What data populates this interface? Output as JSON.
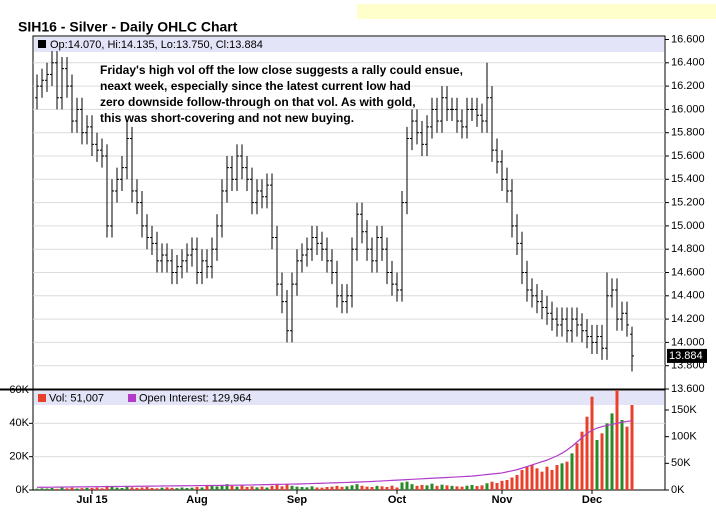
{
  "chart_data": [
    {
      "type": "ohlc",
      "title": "SIH16 - Silver - Daily OHLC Chart",
      "legend_text": "Op:14.070, Hi:14.135, Lo:13.750, Cl:13.884",
      "legend_color": "#000000",
      "annotation": [
        "Friday's high vol off the low close suggests a rally could ensue,",
        "neaxt week, especially since the latest current low had",
        "zero downside follow-through on that vol.  As with gold,",
        "this was short-covering and not new buying."
      ],
      "last_value_label": "13.884",
      "color": "#000000",
      "grid": true,
      "ylim": [
        13.6,
        16.63
      ],
      "yticks": [
        {
          "value": 13.6,
          "label": "13.600"
        },
        {
          "value": 13.8,
          "label": "13.800"
        },
        {
          "value": 14.0,
          "label": "14.000"
        },
        {
          "value": 14.2,
          "label": "14.200"
        },
        {
          "value": 14.4,
          "label": "14.400"
        },
        {
          "value": 14.6,
          "label": "14.600"
        },
        {
          "value": 14.8,
          "label": "14.800"
        },
        {
          "value": 15.0,
          "label": "15.000"
        },
        {
          "value": 15.2,
          "label": "15.200"
        },
        {
          "value": 15.4,
          "label": "15.400"
        },
        {
          "value": 15.6,
          "label": "15.600"
        },
        {
          "value": 15.8,
          "label": "15.800"
        },
        {
          "value": 16.0,
          "label": "16.000"
        },
        {
          "value": 16.2,
          "label": "16.200"
        },
        {
          "value": 16.4,
          "label": "16.400"
        },
        {
          "value": 16.6,
          "label": "16.600"
        }
      ],
      "open": [
        16.1,
        16.2,
        16.25,
        16.3,
        16.4,
        16.1,
        16.35,
        16.2,
        15.9,
        16.0,
        15.8,
        15.85,
        15.7,
        15.65,
        15.6,
        15.0,
        15.3,
        15.4,
        15.5,
        15.75,
        15.3,
        15.2,
        15.0,
        14.9,
        14.85,
        14.7,
        14.75,
        14.7,
        14.6,
        14.65,
        14.7,
        14.75,
        14.8,
        14.6,
        14.7,
        14.65,
        14.8,
        15.0,
        15.3,
        15.5,
        15.4,
        15.6,
        15.5,
        15.4,
        15.2,
        15.3,
        15.25,
        15.35,
        14.9,
        14.5,
        14.35,
        14.1,
        14.5,
        14.7,
        14.75,
        14.8,
        14.9,
        14.85,
        14.8,
        14.7,
        14.6,
        14.4,
        14.35,
        14.4,
        14.8,
        15.1,
        14.95,
        14.8,
        14.7,
        14.9,
        14.8,
        14.6,
        14.5,
        14.45,
        15.2,
        15.75,
        15.9,
        15.8,
        15.7,
        15.85,
        16.0,
        15.9,
        16.1,
        16.0,
        16.0,
        15.9,
        15.85,
        16.0,
        16.0,
        15.95,
        15.9,
        16.1,
        15.65,
        15.55,
        15.4,
        15.3,
        15.0,
        14.85,
        14.6,
        14.45,
        14.4,
        14.35,
        14.3,
        14.25,
        14.2,
        14.15,
        14.2,
        14.1,
        14.2,
        14.15,
        14.1,
        14.05,
        14.0,
        14.05,
        13.95,
        14.4,
        14.45,
        14.2,
        14.25,
        14.07
      ],
      "high": [
        16.3,
        16.35,
        16.4,
        16.5,
        16.5,
        16.45,
        16.45,
        16.3,
        16.1,
        16.1,
        15.95,
        15.95,
        15.8,
        15.75,
        15.7,
        15.4,
        15.5,
        15.6,
        15.9,
        15.85,
        15.4,
        15.3,
        15.1,
        15.0,
        14.95,
        14.85,
        14.85,
        14.8,
        14.75,
        14.8,
        14.85,
        14.9,
        14.9,
        14.8,
        14.8,
        14.9,
        15.1,
        15.4,
        15.6,
        15.6,
        15.7,
        15.7,
        15.6,
        15.5,
        15.4,
        15.4,
        15.45,
        15.45,
        15.0,
        14.6,
        14.45,
        14.6,
        14.8,
        14.85,
        14.9,
        15.0,
        15.0,
        14.95,
        14.9,
        14.8,
        14.7,
        14.5,
        14.5,
        14.9,
        15.2,
        15.2,
        15.05,
        14.9,
        15.0,
        15.0,
        14.9,
        14.7,
        14.6,
        15.3,
        15.85,
        16.0,
        16.0,
        15.9,
        15.95,
        16.1,
        16.1,
        16.2,
        16.2,
        16.1,
        16.1,
        16.0,
        16.1,
        16.1,
        16.1,
        16.05,
        16.4,
        16.2,
        15.75,
        15.65,
        15.5,
        15.4,
        15.1,
        14.95,
        14.7,
        14.55,
        14.5,
        14.45,
        14.4,
        14.35,
        14.3,
        14.3,
        14.3,
        14.3,
        14.3,
        14.25,
        14.2,
        14.15,
        14.15,
        14.15,
        14.6,
        14.55,
        14.55,
        14.35,
        14.35,
        14.135
      ],
      "low": [
        16.0,
        16.1,
        16.15,
        16.2,
        16.0,
        16.0,
        16.1,
        15.8,
        15.8,
        15.7,
        15.7,
        15.6,
        15.55,
        15.5,
        14.9,
        14.9,
        15.2,
        15.3,
        15.4,
        15.2,
        15.1,
        14.9,
        14.8,
        14.75,
        14.6,
        14.6,
        14.6,
        14.5,
        14.5,
        14.55,
        14.6,
        14.65,
        14.5,
        14.5,
        14.55,
        14.55,
        14.7,
        14.9,
        15.2,
        15.3,
        15.3,
        15.4,
        15.3,
        15.1,
        15.1,
        15.15,
        15.15,
        14.8,
        14.4,
        14.25,
        14.0,
        14.0,
        14.4,
        14.6,
        14.65,
        14.7,
        14.75,
        14.7,
        14.6,
        14.5,
        14.3,
        14.25,
        14.25,
        14.3,
        14.7,
        14.85,
        14.7,
        14.6,
        14.6,
        14.7,
        14.5,
        14.4,
        14.35,
        14.35,
        15.1,
        15.65,
        15.7,
        15.6,
        15.6,
        15.75,
        15.8,
        15.8,
        15.9,
        15.9,
        15.8,
        15.75,
        15.75,
        15.9,
        15.85,
        15.8,
        15.8,
        15.55,
        15.45,
        15.3,
        15.2,
        14.9,
        14.75,
        14.5,
        14.35,
        14.3,
        14.25,
        14.2,
        14.15,
        14.1,
        14.05,
        14.05,
        14.0,
        14.0,
        14.05,
        14.0,
        13.95,
        13.9,
        13.9,
        13.85,
        13.85,
        14.3,
        14.1,
        14.1,
        14.05,
        13.75
      ],
      "close": [
        16.2,
        16.25,
        16.3,
        16.4,
        16.1,
        16.35,
        16.2,
        15.9,
        16.0,
        15.8,
        15.85,
        15.7,
        15.65,
        15.6,
        15.0,
        15.3,
        15.4,
        15.5,
        15.75,
        15.3,
        15.2,
        15.0,
        14.9,
        14.85,
        14.7,
        14.75,
        14.7,
        14.6,
        14.65,
        14.7,
        14.75,
        14.8,
        14.6,
        14.7,
        14.65,
        14.8,
        15.0,
        15.3,
        15.5,
        15.4,
        15.6,
        15.5,
        15.4,
        15.2,
        15.3,
        15.25,
        15.35,
        14.9,
        14.5,
        14.35,
        14.1,
        14.5,
        14.7,
        14.75,
        14.8,
        14.9,
        14.85,
        14.8,
        14.7,
        14.6,
        14.4,
        14.35,
        14.4,
        14.8,
        15.1,
        14.95,
        14.8,
        14.7,
        14.9,
        14.8,
        14.6,
        14.5,
        14.45,
        15.2,
        15.75,
        15.9,
        15.8,
        15.7,
        15.85,
        16.0,
        15.9,
        16.1,
        16.0,
        16.0,
        15.9,
        15.85,
        16.0,
        16.0,
        15.95,
        15.9,
        16.1,
        15.65,
        15.55,
        15.4,
        15.3,
        15.0,
        14.85,
        14.6,
        14.45,
        14.4,
        14.35,
        14.3,
        14.25,
        14.2,
        14.15,
        14.2,
        14.1,
        14.2,
        14.15,
        14.1,
        14.05,
        14.0,
        14.05,
        13.95,
        14.4,
        14.45,
        14.2,
        14.25,
        14.15,
        13.884
      ]
    },
    {
      "type": "bar",
      "grid": true,
      "up_color": "#2a8a2a",
      "categories": [
        null,
        null,
        null,
        null,
        null,
        null,
        null,
        null,
        null,
        null,
        null,
        "Jul 15",
        null,
        null,
        null,
        null,
        null,
        null,
        null,
        null,
        null,
        null,
        null,
        null,
        null,
        null,
        null,
        null,
        null,
        null,
        null,
        null,
        "Aug",
        null,
        null,
        null,
        null,
        null,
        null,
        null,
        null,
        null,
        null,
        null,
        null,
        null,
        null,
        null,
        null,
        null,
        null,
        null,
        "Sep",
        null,
        null,
        null,
        null,
        null,
        null,
        null,
        null,
        null,
        null,
        null,
        null,
        null,
        null,
        null,
        null,
        null,
        null,
        null,
        "Oct",
        null,
        null,
        null,
        null,
        null,
        null,
        null,
        null,
        null,
        null,
        null,
        null,
        null,
        null,
        null,
        null,
        null,
        null,
        null,
        null,
        "Nov",
        null,
        null,
        null,
        null,
        null,
        null,
        null,
        null,
        null,
        null,
        null,
        null,
        null,
        null,
        null,
        null,
        null,
        "Dec",
        null,
        null,
        null,
        null,
        null,
        null,
        null,
        null
      ],
      "ylim": [
        0,
        60000
      ],
      "yticks": [
        {
          "value": 0,
          "label": "0K"
        },
        {
          "value": 20000,
          "label": "20K"
        },
        {
          "value": 40000,
          "label": "40K"
        },
        {
          "value": 60000,
          "label": "60K"
        }
      ],
      "y2lim": [
        0,
        187500
      ],
      "y2ticks": [
        {
          "value": 0,
          "label": "0K"
        },
        {
          "value": 50000,
          "label": "50K"
        },
        {
          "value": 100000,
          "label": "100K"
        },
        {
          "value": 150000,
          "label": "150K"
        }
      ],
      "series": [
        {
          "name": "Vol: 51,007",
          "color": "#e8402a",
          "values": [
            800,
            1000,
            900,
            1200,
            700,
            1500,
            1000,
            1400,
            900,
            1100,
            1300,
            1200,
            1500,
            1000,
            2500,
            1800,
            1400,
            1200,
            2000,
            1600,
            1300,
            1500,
            1800,
            1200,
            1000,
            1400,
            1600,
            1300,
            1100,
            1500,
            1200,
            1400,
            1800,
            1500,
            2500,
            3000,
            2200,
            2800,
            3500,
            2400,
            2000,
            2600,
            1800,
            2200,
            1600,
            2000,
            1500,
            2500,
            3000,
            2200,
            3500,
            2500,
            2000,
            1800,
            1600,
            2200,
            1500,
            1400,
            1800,
            2000,
            2500,
            1900,
            2200,
            2800,
            3500,
            2500,
            2000,
            1800,
            2500,
            2200,
            1800,
            2600,
            1500,
            4500,
            5000,
            3500,
            2500,
            3000,
            2800,
            3800,
            2500,
            3200,
            2800,
            2500,
            2200,
            2000,
            2600,
            3000,
            2400,
            2800,
            4000,
            5000,
            4200,
            5500,
            6000,
            7500,
            9000,
            12000,
            14000,
            15000,
            13000,
            11000,
            14000,
            12000,
            15000,
            16000,
            17000,
            22000,
            28000,
            35000,
            44000,
            56000,
            30000,
            34000,
            40000,
            46000,
            60000,
            42000,
            38000,
            51007
          ]
        },
        {
          "name": "Open Interest: 129,964",
          "color": "#b03cc8",
          "type": "line",
          "axis": "y2",
          "values": [
            5000,
            5100,
            5200,
            5300,
            5400,
            5500,
            5600,
            5700,
            5800,
            5900,
            6000,
            6100,
            6200,
            6300,
            6400,
            6500,
            6600,
            6700,
            6800,
            6900,
            7000,
            7100,
            7200,
            7300,
            7400,
            7500,
            7600,
            7700,
            7800,
            7900,
            8000,
            8100,
            8200,
            8300,
            8400,
            8500,
            8600,
            8700,
            8800,
            8900,
            9000,
            9100,
            9300,
            9500,
            9700,
            9900,
            10100,
            10300,
            10500,
            10700,
            10900,
            11100,
            11300,
            11500,
            11800,
            12100,
            12400,
            12700,
            13000,
            13300,
            13600,
            13900,
            14200,
            14500,
            14800,
            15200,
            15600,
            16000,
            16500,
            17000,
            17500,
            18000,
            18500,
            19000,
            19500,
            20000,
            20500,
            21000,
            21500,
            22000,
            22500,
            23000,
            23500,
            24000,
            24500,
            25000,
            25500,
            26000,
            27000,
            28000,
            29000,
            30000,
            31000,
            32000,
            34000,
            36000,
            38000,
            41000,
            44000,
            47000,
            50000,
            53000,
            56000,
            60000,
            64000,
            69000,
            75000,
            82000,
            90000,
            98000,
            106000,
            112000,
            116000,
            119000,
            121000,
            123000,
            125000,
            127000,
            128500,
            129964
          ]
        }
      ]
    }
  ]
}
